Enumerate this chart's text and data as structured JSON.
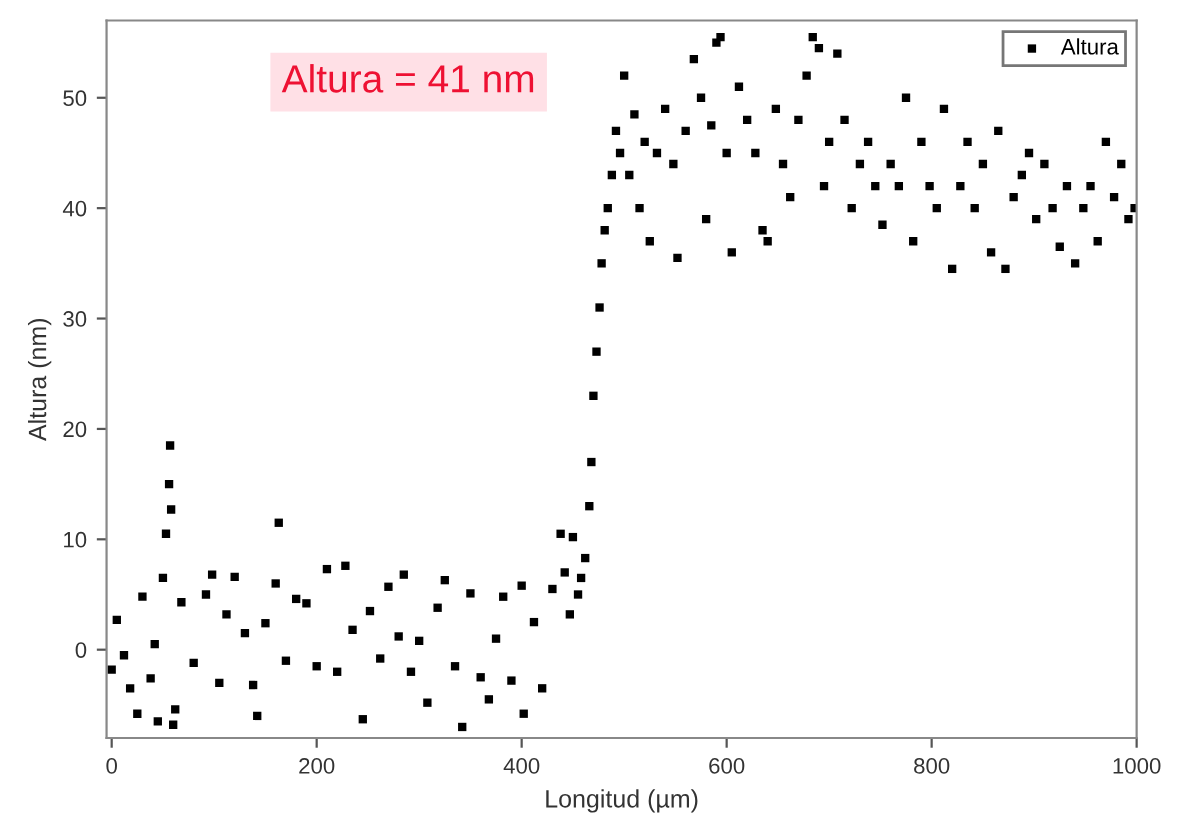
{
  "chart_data": {
    "type": "scatter",
    "xlabel": "Longitud (µm)",
    "ylabel": "Altura (nm)",
    "annotations": [
      "Altura = 41 nm"
    ],
    "xlim": [
      -5,
      1000
    ],
    "xticks": [
      0,
      200,
      400,
      600,
      800,
      1000
    ],
    "ylim": [
      -8,
      57
    ],
    "yticks": [
      0,
      10,
      20,
      30,
      40,
      50
    ],
    "grid": false,
    "legend": "top right",
    "marker": "square",
    "series": [
      {
        "name": "Altura",
        "color": "#000000",
        "x": [
          0,
          5,
          12,
          18,
          25,
          30,
          38,
          42,
          45,
          50,
          53,
          56,
          57,
          58,
          60,
          62,
          68,
          80,
          92,
          98,
          105,
          112,
          120,
          130,
          138,
          142,
          150,
          160,
          163,
          170,
          180,
          190,
          200,
          210,
          220,
          228,
          235,
          245,
          252,
          262,
          270,
          280,
          285,
          292,
          300,
          308,
          318,
          325,
          335,
          342,
          350,
          360,
          368,
          375,
          382,
          390,
          400,
          402,
          412,
          420,
          430,
          438,
          442,
          447,
          450,
          455,
          458,
          462,
          466,
          468,
          470,
          473,
          476,
          478,
          481,
          484,
          488,
          492,
          496,
          500,
          505,
          510,
          515,
          520,
          525,
          532,
          540,
          548,
          552,
          560,
          568,
          575,
          580,
          585,
          590,
          594,
          600,
          605,
          612,
          620,
          628,
          635,
          640,
          648,
          655,
          662,
          670,
          678,
          684,
          690,
          695,
          700,
          708,
          715,
          722,
          730,
          738,
          745,
          752,
          760,
          768,
          775,
          782,
          790,
          798,
          805,
          812,
          820,
          828,
          835,
          842,
          850,
          858,
          865,
          872,
          880,
          888,
          895,
          902,
          910,
          918,
          925,
          932,
          940,
          948,
          955,
          962,
          970,
          978,
          985,
          992,
          998
        ],
        "values": [
          -1.8,
          2.7,
          -0.5,
          -3.5,
          -5.8,
          4.8,
          -2.6,
          0.5,
          -6.5,
          6.5,
          10.5,
          15,
          18.5,
          12.7,
          -6.8,
          -5.4,
          4.3,
          -1.2,
          5,
          6.8,
          -3,
          3.2,
          6.6,
          1.5,
          -3.2,
          -6,
          2.4,
          6,
          11.5,
          -1,
          4.6,
          4.2,
          -1.5,
          7.3,
          -2,
          7.6,
          1.8,
          -6.3,
          3.5,
          -0.8,
          5.7,
          1.2,
          6.8,
          -2,
          0.8,
          -4.8,
          3.8,
          6.3,
          -1.5,
          -7,
          5.1,
          -2.5,
          -4.5,
          1,
          4.8,
          -2.8,
          5.8,
          -5.8,
          2.5,
          -3.5,
          5.5,
          10.5,
          7,
          3.2,
          10.2,
          5,
          6.5,
          8.3,
          13,
          17,
          23,
          27,
          31,
          35,
          38,
          40,
          43,
          47,
          45,
          52,
          43,
          48.5,
          40,
          46,
          37,
          45,
          49,
          44,
          35.5,
          47,
          53.5,
          50,
          39,
          47.5,
          55,
          55.5,
          45,
          36,
          51,
          48,
          45,
          38,
          37,
          49,
          44,
          41,
          48,
          52,
          55.5,
          54.5,
          42,
          46,
          54,
          48,
          40,
          44,
          46,
          42,
          38.5,
          44,
          42,
          50,
          37,
          46,
          42,
          40,
          49,
          34.5,
          42,
          46,
          40,
          44,
          36,
          47,
          34.5,
          41,
          43,
          45,
          39,
          44,
          40,
          36.5,
          42,
          35,
          40,
          42,
          37,
          46,
          41,
          44,
          39,
          40
        ]
      }
    ]
  }
}
